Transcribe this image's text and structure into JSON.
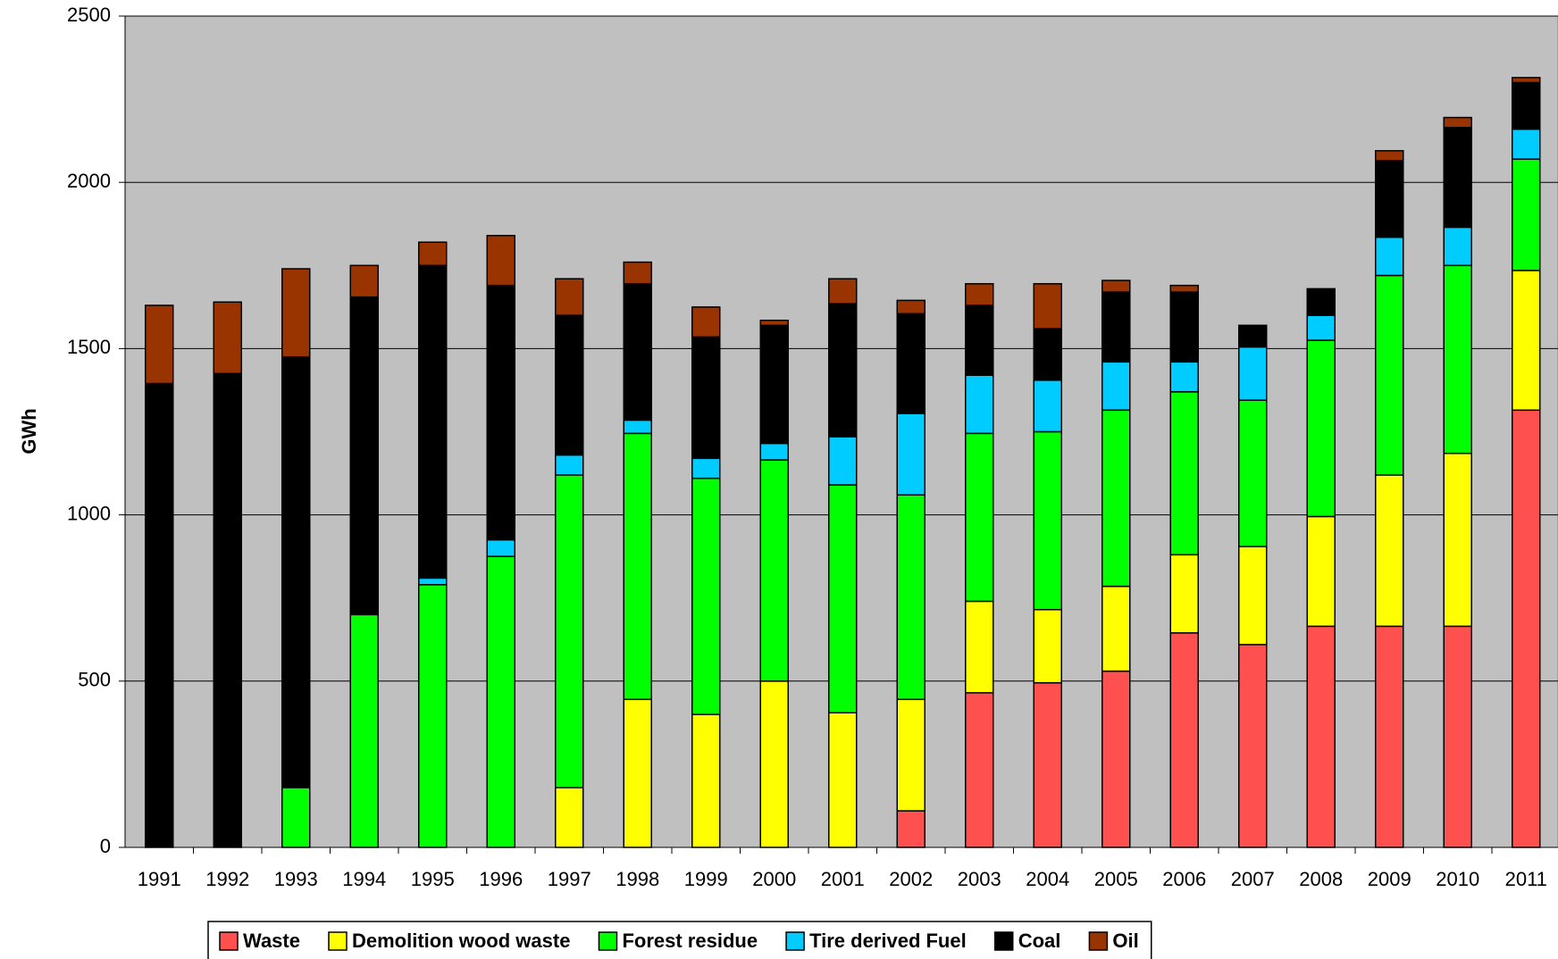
{
  "chart_data": {
    "type": "stacked_bar",
    "y_label": "GWh",
    "categories": [
      "1991",
      "1992",
      "1993",
      "1994",
      "1995",
      "1996",
      "1997",
      "1998",
      "1999",
      "2000",
      "2001",
      "2002",
      "2003",
      "2004",
      "2005",
      "2006",
      "2007",
      "2008",
      "2009",
      "2010",
      "2011"
    ],
    "series": [
      {
        "name": "Waste",
        "color": "#ff5050",
        "values": [
          0,
          0,
          0,
          0,
          0,
          0,
          0,
          0,
          0,
          0,
          0,
          110,
          465,
          495,
          530,
          645,
          610,
          665,
          665,
          665,
          1315
        ]
      },
      {
        "name": "Demolition wood waste",
        "color": "#ffff00",
        "values": [
          0,
          0,
          0,
          0,
          0,
          0,
          180,
          445,
          400,
          500,
          405,
          335,
          275,
          220,
          255,
          235,
          295,
          330,
          455,
          520,
          420
        ]
      },
      {
        "name": "Forest residue",
        "color": "#00ff00",
        "values": [
          0,
          0,
          180,
          700,
          790,
          875,
          940,
          800,
          710,
          665,
          685,
          615,
          505,
          535,
          530,
          490,
          440,
          530,
          600,
          565,
          335
        ]
      },
      {
        "name": "Tire derived Fuel",
        "color": "#00ccff",
        "values": [
          0,
          0,
          0,
          0,
          20,
          50,
          60,
          40,
          60,
          50,
          145,
          245,
          175,
          155,
          145,
          90,
          160,
          75,
          115,
          115,
          90
        ]
      },
      {
        "name": "Coal",
        "color": "#000000",
        "values": [
          1395,
          1425,
          1295,
          955,
          940,
          765,
          420,
          410,
          365,
          355,
          400,
          300,
          210,
          155,
          210,
          210,
          65,
          80,
          230,
          300,
          140
        ]
      },
      {
        "name": "Oil",
        "color": "#993300",
        "values": [
          235,
          215,
          265,
          95,
          70,
          150,
          110,
          65,
          90,
          15,
          75,
          40,
          65,
          135,
          35,
          20,
          0,
          0,
          30,
          30,
          15
        ]
      }
    ],
    "ylim": [
      0,
      2500
    ],
    "yticks": [
      0,
      500,
      1000,
      1500,
      2000,
      2500
    ],
    "grid": true,
    "legend": "bottom"
  }
}
